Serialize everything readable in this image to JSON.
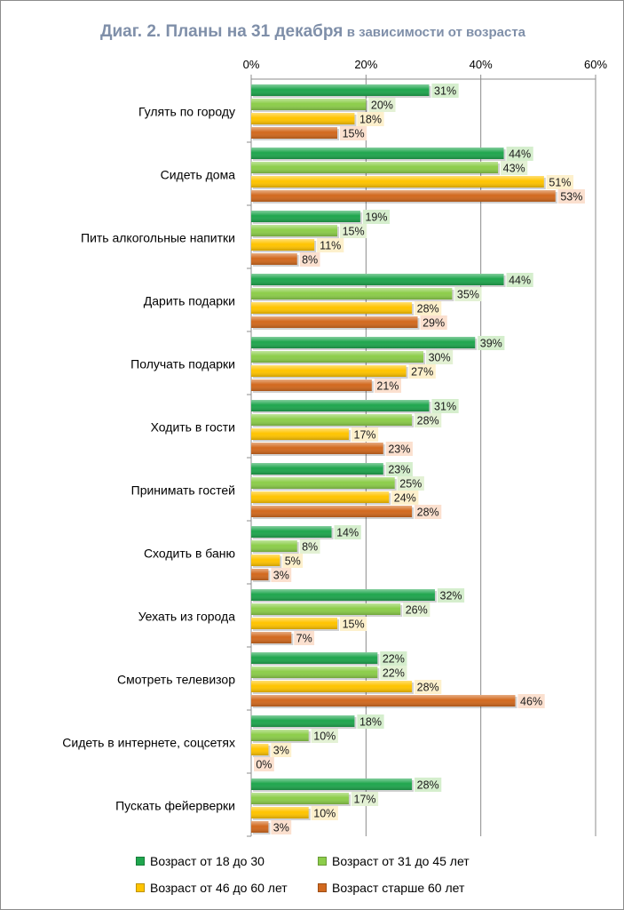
{
  "title": {
    "main": "Диаг. 2. Планы на 31 декабря",
    "sub": "в зависимости от возраста"
  },
  "colors": {
    "series": [
      "#1fa64e",
      "#8ccd4a",
      "#ffc400",
      "#d2691e"
    ],
    "label_bg": [
      "#d5eecd",
      "#e3f1d4",
      "#fdf0cc",
      "#fbe0cf"
    ],
    "grid": "#8c8c8c",
    "title": "#7f8fa9"
  },
  "chart_data": {
    "type": "bar",
    "orientation": "horizontal",
    "title": "Диаг. 2. Планы на 31 декабря в зависимости от возраста",
    "xlabel": "",
    "ylabel": "",
    "xlim": [
      0,
      60
    ],
    "x_ticks": [
      "0%",
      "20%",
      "40%",
      "60%"
    ],
    "tick_values": [
      0,
      20,
      40,
      60
    ],
    "value_suffix": "%",
    "legend_position": "bottom",
    "categories": [
      "Гулять по городу",
      "Сидеть дома",
      "Пить алкогольные напитки",
      "Дарить подарки",
      "Получать подарки",
      "Ходить в гости",
      "Принимать гостей",
      "Сходить в баню",
      "Уехать из города",
      "Смотреть телевизор",
      "Сидеть в интернете, соцсетях",
      "Пускать фейерверки"
    ],
    "series": [
      {
        "name": "Возраст от 18 до 30",
        "values": [
          31,
          44,
          19,
          44,
          39,
          31,
          23,
          14,
          32,
          22,
          18,
          28
        ]
      },
      {
        "name": "Возраст от 31 до 45 лет",
        "values": [
          20,
          43,
          15,
          35,
          30,
          28,
          25,
          8,
          26,
          22,
          10,
          17
        ]
      },
      {
        "name": "Возраст от 46 до 60 лет",
        "values": [
          18,
          51,
          11,
          28,
          27,
          17,
          24,
          5,
          15,
          28,
          3,
          10
        ]
      },
      {
        "name": "Возраст старше 60 лет",
        "values": [
          15,
          53,
          8,
          29,
          21,
          23,
          28,
          3,
          7,
          46,
          0,
          3
        ]
      }
    ]
  }
}
